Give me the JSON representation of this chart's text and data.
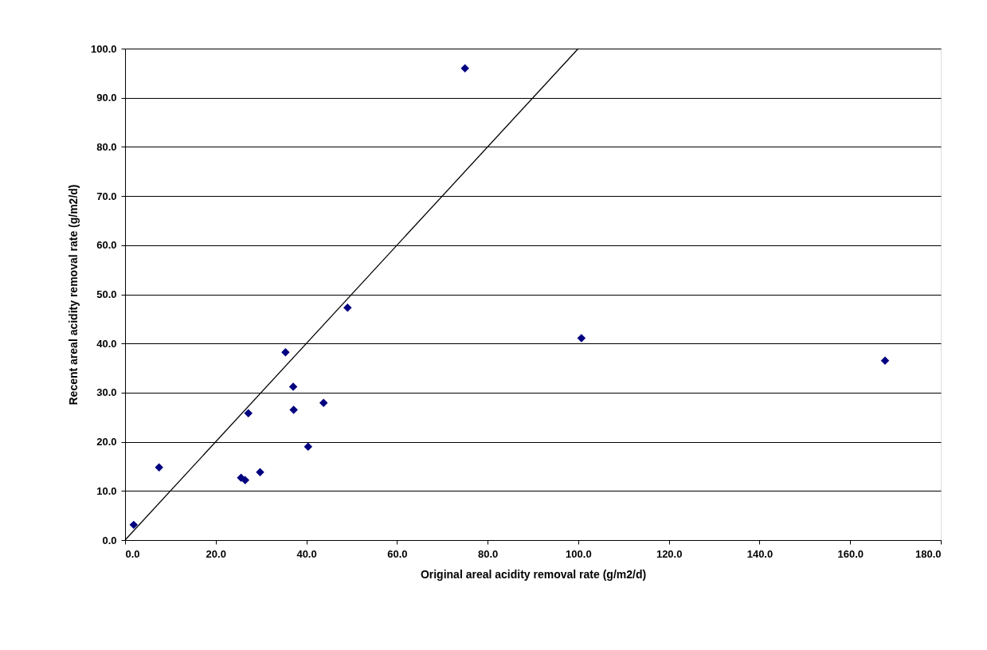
{
  "chart_data": {
    "type": "scatter",
    "xlabel": "Original areal acidity removal rate (g/m2/d)",
    "ylabel": "Recent areal acidity removal rate (g/m2/d)",
    "x": [
      1.9,
      7.5,
      25.6,
      26.5,
      27.2,
      29.8,
      35.4,
      37.1,
      37.2,
      43.8,
      40.4,
      49.1,
      75.0,
      100.7,
      167.7
    ],
    "series": [
      {
        "color": "#000080",
        "marker": "diamond",
        "values": [
          3.1,
          14.8,
          12.7,
          12.2,
          25.8,
          13.8,
          38.2,
          31.2,
          26.5,
          27.9,
          19.0,
          47.3,
          96.0,
          41.1,
          36.5
        ]
      },
      {
        "type": "line",
        "color": "#000000",
        "x": [
          0,
          100
        ],
        "values": [
          0,
          100
        ]
      }
    ],
    "xlim": [
      0,
      180
    ],
    "ylim": [
      0,
      100
    ],
    "xticks": [
      {
        "value": 0,
        "label": "0.0"
      },
      {
        "value": 20,
        "label": "20.0"
      },
      {
        "value": 40,
        "label": "40.0"
      },
      {
        "value": 60,
        "label": "60.0"
      },
      {
        "value": 80,
        "label": "80.0"
      },
      {
        "value": 100,
        "label": "100.0"
      },
      {
        "value": 120,
        "label": "120.0"
      },
      {
        "value": 140,
        "label": "140.0"
      },
      {
        "value": 160,
        "label": "160.0"
      },
      {
        "value": 180,
        "label": "180.0"
      }
    ],
    "yticks": [
      {
        "value": 0,
        "label": "0.0"
      },
      {
        "value": 10,
        "label": "10.0"
      },
      {
        "value": 20,
        "label": "20.0"
      },
      {
        "value": 30,
        "label": "30.0"
      },
      {
        "value": 40,
        "label": "40.0"
      },
      {
        "value": 50,
        "label": "50.0"
      },
      {
        "value": 60,
        "label": "60.0"
      },
      {
        "value": 70,
        "label": "70.0"
      },
      {
        "value": 80,
        "label": "80.0"
      },
      {
        "value": 90,
        "label": "90.0"
      },
      {
        "value": 100,
        "label": "100.0"
      }
    ],
    "grid": "y"
  }
}
